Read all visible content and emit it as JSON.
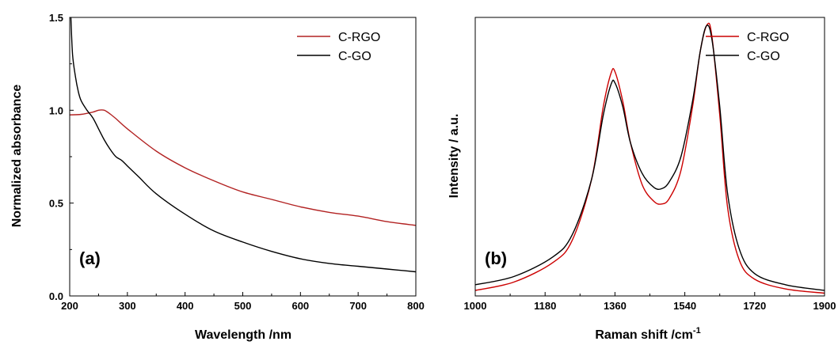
{
  "chart_data": [
    {
      "type": "line",
      "panel_label": "(a)",
      "xlabel": "Wavelength /nm",
      "ylabel": "Normalized absorbance",
      "xlim": [
        200,
        800
      ],
      "ylim": [
        0.0,
        1.5
      ],
      "xticks": [
        "200",
        "300",
        "400",
        "500",
        "600",
        "700",
        "800"
      ],
      "yticks": [
        "0.0",
        "0.5",
        "1.0",
        "1.5"
      ],
      "legend_position": "top-right",
      "grid": false,
      "series": [
        {
          "name": "C-RGO",
          "color": "#b22222",
          "x": [
            200,
            220,
            240,
            250,
            260,
            270,
            280,
            300,
            350,
            400,
            450,
            500,
            550,
            600,
            650,
            700,
            750,
            800
          ],
          "y": [
            0.975,
            0.978,
            0.99,
            1.0,
            1.0,
            0.98,
            0.955,
            0.9,
            0.78,
            0.69,
            0.62,
            0.56,
            0.52,
            0.48,
            0.45,
            0.43,
            0.4,
            0.38
          ]
        },
        {
          "name": "C-GO",
          "color": "#000000",
          "x": [
            202,
            205,
            210,
            215,
            220,
            230,
            240,
            250,
            260,
            270,
            280,
            290,
            300,
            320,
            350,
            400,
            450,
            500,
            550,
            600,
            650,
            700,
            750,
            800
          ],
          "y": [
            1.5,
            1.3,
            1.18,
            1.1,
            1.05,
            1.0,
            0.96,
            0.9,
            0.84,
            0.79,
            0.75,
            0.73,
            0.7,
            0.64,
            0.55,
            0.44,
            0.35,
            0.29,
            0.24,
            0.2,
            0.175,
            0.16,
            0.145,
            0.13
          ]
        }
      ]
    },
    {
      "type": "line",
      "panel_label": "(b)",
      "xlabel": "Raman shift /cm",
      "xlabel_superscript": "-1",
      "ylabel": "Intensity / a.u.",
      "xlim": [
        1000,
        1900
      ],
      "ylim": [
        0,
        1.0
      ],
      "xticks": [
        "1000",
        "1180",
        "1360",
        "1540",
        "1720",
        "1900"
      ],
      "legend_position": "top-right",
      "grid": false,
      "series": [
        {
          "name": "C-RGO",
          "color": "#cc0000",
          "x": [
            1000,
            1100,
            1200,
            1250,
            1300,
            1330,
            1350,
            1360,
            1380,
            1400,
            1430,
            1460,
            1480,
            1500,
            1530,
            1560,
            1580,
            1598,
            1610,
            1630,
            1650,
            1680,
            1720,
            1800,
            1900
          ],
          "y": [
            0.02,
            0.05,
            0.12,
            0.2,
            0.42,
            0.68,
            0.8,
            0.805,
            0.7,
            0.55,
            0.4,
            0.34,
            0.33,
            0.35,
            0.45,
            0.68,
            0.88,
            0.975,
            0.93,
            0.65,
            0.32,
            0.13,
            0.06,
            0.025,
            0.01
          ]
        },
        {
          "name": "C-GO",
          "color": "#000000",
          "x": [
            1000,
            1100,
            1200,
            1250,
            1300,
            1330,
            1350,
            1360,
            1380,
            1400,
            1430,
            1460,
            1480,
            1500,
            1530,
            1560,
            1580,
            1596,
            1610,
            1630,
            1650,
            1680,
            1720,
            1800,
            1900
          ],
          "y": [
            0.04,
            0.07,
            0.14,
            0.22,
            0.42,
            0.65,
            0.76,
            0.765,
            0.68,
            0.55,
            0.44,
            0.39,
            0.385,
            0.41,
            0.5,
            0.7,
            0.88,
            0.97,
            0.92,
            0.68,
            0.37,
            0.17,
            0.08,
            0.04,
            0.02
          ]
        }
      ]
    }
  ]
}
